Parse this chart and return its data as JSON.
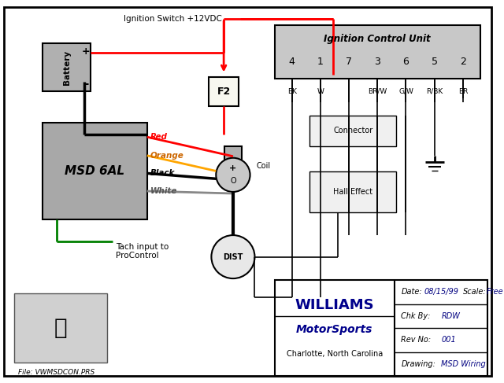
{
  "bg_color": "#ffffff",
  "border_color": "#000000",
  "ignition_switch_label": "Ignition Switch +12VDC",
  "battery_label": "Battery",
  "msd_label": "MSD 6AL",
  "icu_label": "Ignition Control Unit",
  "icu_pins": [
    "4",
    "1",
    "7",
    "3",
    "6",
    "5",
    "2"
  ],
  "icu_wire_labels": [
    "BK",
    "W",
    "BR/W",
    "G/W",
    "R/BK",
    "BR"
  ],
  "connector_label": "Connector",
  "hall_effect_label": "Hall Effect",
  "coil_label": "Coil",
  "dist_label": "DIST",
  "f2_label": "F2",
  "wire_labels": [
    "Red",
    "Orange",
    "Black",
    "White"
  ],
  "tach_label": "Tach input to\nProControl",
  "file_label": "File: VWMSDCON.PRS",
  "williams_text": "WILLIAMS",
  "motorsports_text": "MotorSports",
  "charlotte_text": "Charlotte, North Carolina",
  "drawing_label": "Drawing:",
  "drawing_value": "MSD Wiring",
  "revno_label": "Rev No:",
  "revno_value": "001",
  "chkby_label": "Chk By:",
  "chkby_value": "RDW",
  "date_label": "Date:",
  "date_value": "08/15/99",
  "scale_label": "Scale:",
  "scale_value": "Free"
}
